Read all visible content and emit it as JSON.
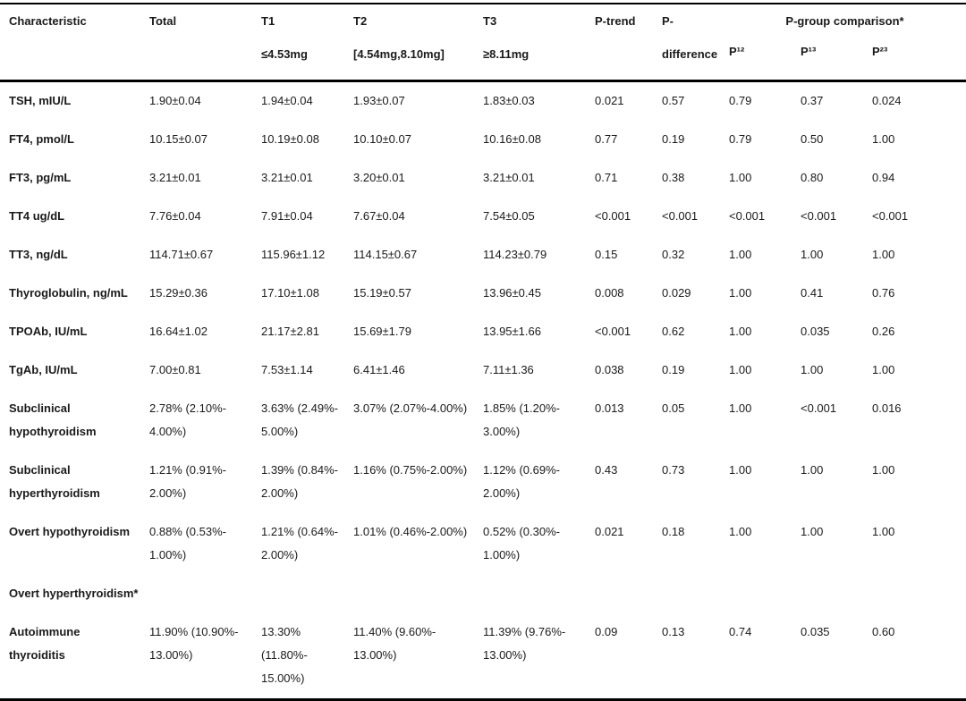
{
  "colors": {
    "text": "#1a1a1a",
    "border": "#000000",
    "background": "#ffffff"
  },
  "table": {
    "header": {
      "characteristic": "Characteristic",
      "total": "Total",
      "t1": "T1\n≤4.53mg",
      "t2": "T2\n[4.54mg,8.10mg]",
      "t3": "T3\n≥8.11mg",
      "p_trend": "P-trend",
      "p_difference": "P-\ndifference",
      "p_group": "P-group comparison*",
      "p12": "P¹²",
      "p13": "P¹³",
      "p23": "P²³"
    },
    "rows": [
      {
        "label": "TSH, mIU/L",
        "cells": [
          "1.90±0.04",
          "1.94±0.04",
          "1.93±0.07",
          "1.83±0.03",
          "0.021",
          "0.57",
          "0.79",
          "0.37",
          "0.024"
        ]
      },
      {
        "label": "FT4, pmol/L",
        "cells": [
          "10.15±0.07",
          "10.19±0.08",
          "10.10±0.07",
          "10.16±0.08",
          "0.77",
          "0.19",
          "0.79",
          "0.50",
          "1.00"
        ]
      },
      {
        "label": "FT3, pg/mL",
        "cells": [
          "3.21±0.01",
          "3.21±0.01",
          "3.20±0.01",
          "3.21±0.01",
          "0.71",
          "0.38",
          "1.00",
          "0.80",
          "0.94"
        ]
      },
      {
        "label": "TT4 ug/dL",
        "cells": [
          "7.76±0.04",
          "7.91±0.04",
          "7.67±0.04",
          "7.54±0.05",
          "<0.001",
          "<0.001",
          "<0.001",
          "<0.001",
          "<0.001"
        ]
      },
      {
        "label": "TT3, ng/dL",
        "cells": [
          "114.71±0.67",
          "115.96±1.12",
          "114.15±0.67",
          "114.23±0.79",
          "0.15",
          "0.32",
          "1.00",
          "1.00",
          "1.00"
        ]
      },
      {
        "label": "Thyroglobulin, ng/mL",
        "cells": [
          "15.29±0.36",
          "17.10±1.08",
          "15.19±0.57",
          "13.96±0.45",
          "0.008",
          "0.029",
          "1.00",
          "0.41",
          "0.76"
        ]
      },
      {
        "label": "TPOAb, IU/mL",
        "cells": [
          "16.64±1.02",
          "21.17±2.81",
          "15.69±1.79",
          "13.95±1.66",
          "<0.001",
          "0.62",
          "1.00",
          "0.035",
          "0.26"
        ]
      },
      {
        "label": "TgAb, IU/mL",
        "cells": [
          "7.00±0.81",
          "7.53±1.14",
          "6.41±1.46",
          "7.11±1.36",
          "0.038",
          "0.19",
          "1.00",
          "1.00",
          "1.00"
        ]
      },
      {
        "label": "Subclinical\nhypothyroidism",
        "cells": [
          "2.78% (2.10%-\n4.00%)",
          "3.63% (2.49%-\n5.00%)",
          "3.07% (2.07%-4.00%)",
          "1.85% (1.20%-\n3.00%)",
          "0.013",
          "0.05",
          "1.00",
          "<0.001",
          "0.016"
        ]
      },
      {
        "label": "Subclinical\nhyperthyroidism",
        "cells": [
          "1.21% (0.91%-\n2.00%)",
          "1.39% (0.84%-\n2.00%)",
          "1.16% (0.75%-2.00%)",
          "1.12% (0.69%-\n2.00%)",
          "0.43",
          "0.73",
          "1.00",
          "1.00",
          "1.00"
        ]
      },
      {
        "label": "Overt hypothyroidism",
        "cells": [
          "0.88% (0.53%-\n1.00%)",
          "1.21% (0.64%-\n2.00%)",
          "1.01% (0.46%-2.00%)",
          "0.52% (0.30%-\n1.00%)",
          "0.021",
          "0.18",
          "1.00",
          "1.00",
          "1.00"
        ]
      },
      {
        "label": "Overt hyperthyroidism*",
        "cells": [
          "",
          "",
          "",
          "",
          "",
          "",
          "",
          "",
          ""
        ]
      },
      {
        "label": "Autoimmune\nthyroiditis",
        "cells": [
          "11.90% (10.90%-\n13.00%)",
          "13.30%\n(11.80%-\n15.00%)",
          "11.40% (9.60%-\n13.00%)",
          "11.39% (9.76%-\n13.00%)",
          "0.09",
          "0.13",
          "0.74",
          "0.035",
          "0.60"
        ]
      }
    ]
  }
}
